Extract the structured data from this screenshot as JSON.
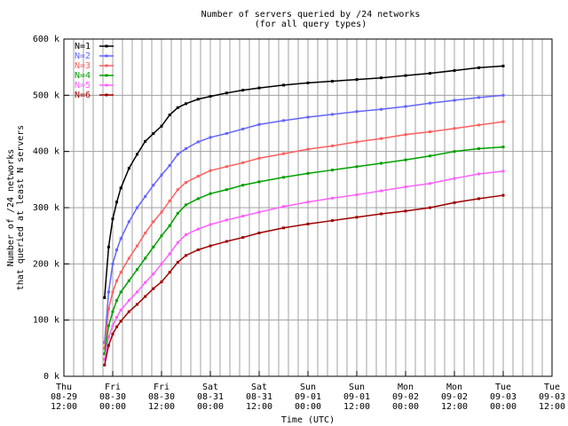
{
  "chart_data": {
    "type": "line",
    "title": [
      "Number of servers queried by /24 networks",
      "(for all query types)"
    ],
    "y_label": [
      "Number of /24 networks",
      "that queried at least N servers"
    ],
    "x_label": "Time (UTC)",
    "x": [
      10,
      11,
      12,
      13,
      14,
      16,
      18,
      20,
      22,
      24,
      26,
      28,
      30,
      33,
      36,
      40,
      44,
      48,
      54,
      60,
      66,
      72,
      78,
      84,
      90,
      96,
      102,
      108
    ],
    "series": [
      {
        "name": "N=1",
        "color": "#000000",
        "values": [
          140,
          230,
          280,
          310,
          335,
          370,
          395,
          418,
          432,
          445,
          465,
          478,
          485,
          493,
          498,
          504,
          509,
          513,
          518,
          522,
          525,
          528,
          531,
          535,
          539,
          544,
          549,
          552
        ]
      },
      {
        "name": "N=2",
        "color": "#6464ff",
        "values": [
          60,
          150,
          200,
          225,
          245,
          275,
          300,
          320,
          340,
          358,
          375,
          395,
          405,
          417,
          425,
          432,
          440,
          448,
          455,
          461,
          466,
          471,
          475,
          480,
          486,
          491,
          496,
          500
        ]
      },
      {
        "name": "N=3",
        "color": "#ff5f5f",
        "values": [
          50,
          120,
          150,
          170,
          185,
          210,
          232,
          255,
          275,
          292,
          312,
          332,
          345,
          356,
          366,
          373,
          380,
          388,
          396,
          404,
          410,
          417,
          423,
          430,
          435,
          441,
          447,
          453
        ]
      },
      {
        "name": "N=4",
        "color": "#00a000",
        "values": [
          40,
          90,
          115,
          135,
          150,
          170,
          190,
          210,
          230,
          250,
          268,
          290,
          305,
          316,
          325,
          332,
          340,
          346,
          354,
          361,
          367,
          373,
          379,
          385,
          392,
          400,
          405,
          408
        ]
      },
      {
        "name": "N=5",
        "color": "#ff5fff",
        "values": [
          30,
          70,
          90,
          105,
          118,
          135,
          150,
          167,
          182,
          200,
          218,
          238,
          252,
          262,
          270,
          278,
          285,
          292,
          302,
          310,
          317,
          323,
          330,
          337,
          343,
          352,
          360,
          365
        ]
      },
      {
        "name": "N=6",
        "color": "#a00000",
        "values": [
          20,
          55,
          75,
          88,
          98,
          115,
          128,
          142,
          156,
          168,
          185,
          203,
          215,
          225,
          232,
          240,
          247,
          255,
          264,
          271,
          277,
          283,
          289,
          294,
          300,
          309,
          316,
          322
        ]
      }
    ],
    "xlim": [
      0,
      120
    ],
    "xticks": [
      {
        "value": 0,
        "label": [
          "Thu",
          "08-29",
          "12:00"
        ]
      },
      {
        "value": 12,
        "label": [
          "Fri",
          "08-30",
          "00:00"
        ]
      },
      {
        "value": 24,
        "label": [
          "Fri",
          "08-30",
          "12:00"
        ]
      },
      {
        "value": 36,
        "label": [
          "Sat",
          "08-31",
          "00:00"
        ]
      },
      {
        "value": 48,
        "label": [
          "Sat",
          "08-31",
          "12:00"
        ]
      },
      {
        "value": 60,
        "label": [
          "Sun",
          "09-01",
          "00:00"
        ]
      },
      {
        "value": 72,
        "label": [
          "Sun",
          "09-01",
          "12:00"
        ]
      },
      {
        "value": 84,
        "label": [
          "Mon",
          "09-02",
          "00:00"
        ]
      },
      {
        "value": 96,
        "label": [
          "Mon",
          "09-02",
          "12:00"
        ]
      },
      {
        "value": 108,
        "label": [
          "Tue",
          "09-03",
          "00:00"
        ]
      },
      {
        "value": 120,
        "label": [
          "Tue",
          "09-03",
          "12:00"
        ]
      }
    ],
    "minor_xticks": 5,
    "ylim": [
      0,
      600
    ],
    "yticks": [
      {
        "value": 0,
        "label": "0 k"
      },
      {
        "value": 100,
        "label": "100 k"
      },
      {
        "value": 200,
        "label": "200 k"
      },
      {
        "value": 300,
        "label": "300 k"
      },
      {
        "value": 400,
        "label": "400 k"
      },
      {
        "value": 500,
        "label": "500 k"
      },
      {
        "value": 600,
        "label": "600 k"
      }
    ],
    "grid": true,
    "legend": "top-left"
  }
}
